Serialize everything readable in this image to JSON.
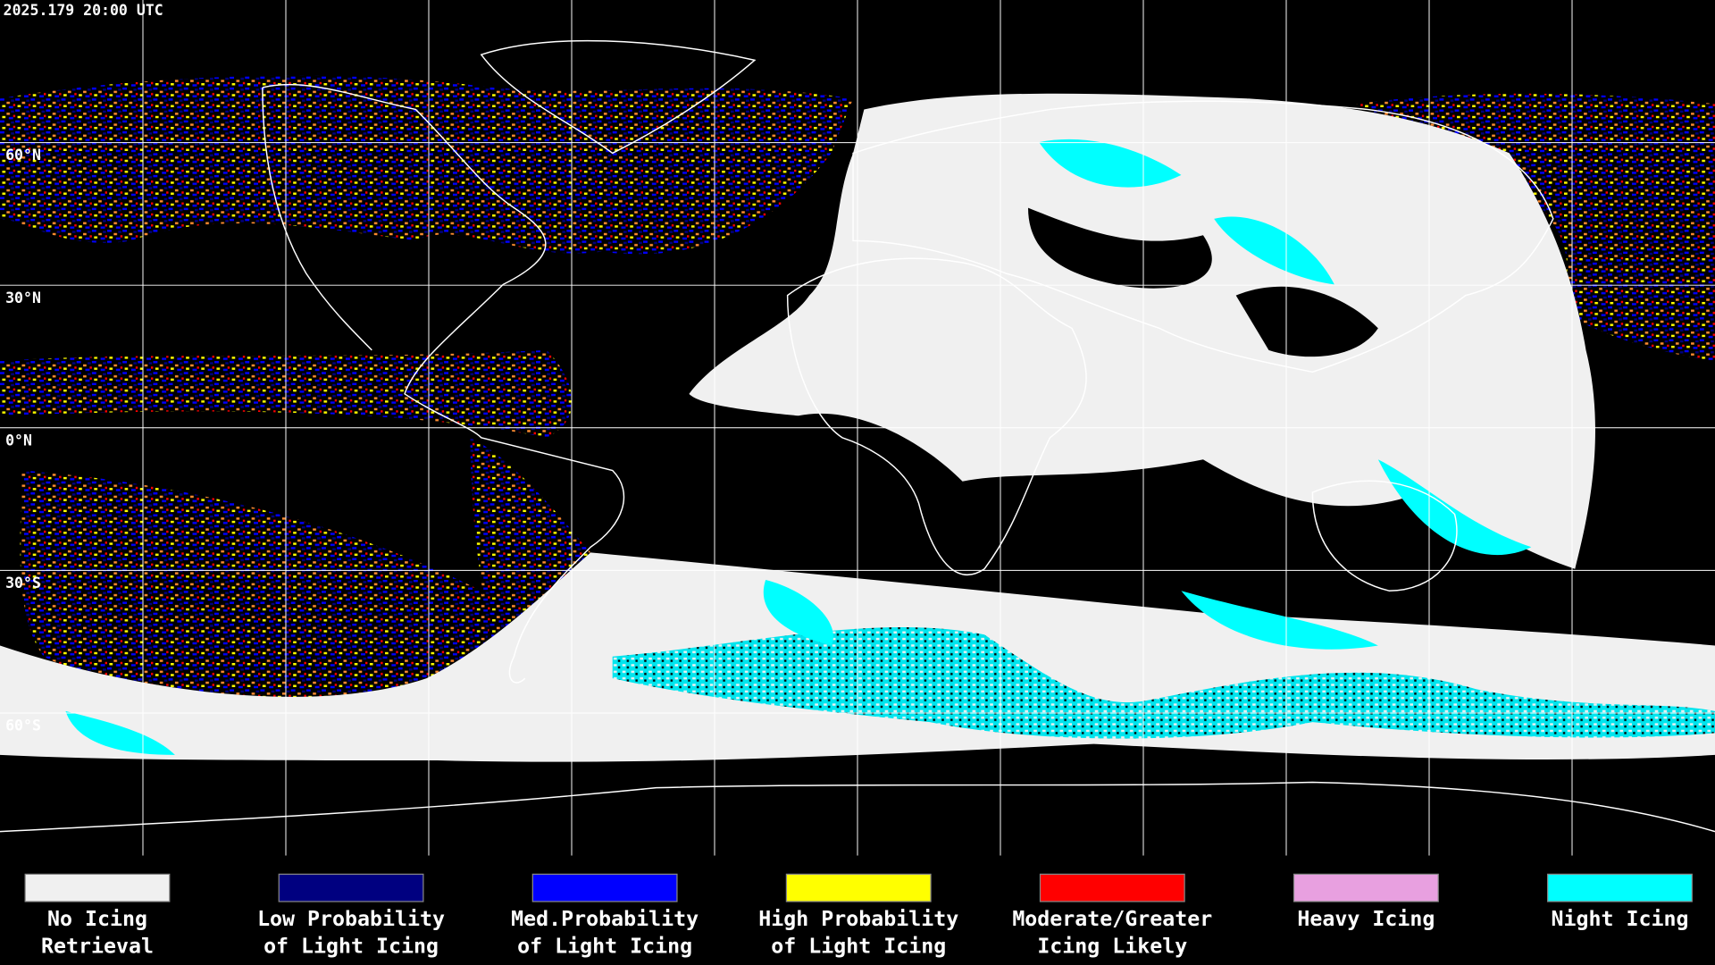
{
  "timestamp": "2025.179 20:00 UTC",
  "latitude_labels": [
    "60°N",
    "30°N",
    "0°N",
    "30°S",
    "60°S"
  ],
  "legend": [
    {
      "color": "#f0f0f0",
      "label": [
        "No Icing",
        "Retrieval"
      ]
    },
    {
      "color": "#000080",
      "label": [
        "Low Probability",
        "of Light Icing"
      ]
    },
    {
      "color": "#0000ff",
      "label": [
        "Med.Probability",
        "of Light Icing"
      ]
    },
    {
      "color": "#ffff00",
      "label": [
        "High Probability",
        "of Light Icing"
      ]
    },
    {
      "color": "#ff0000",
      "label": [
        "Moderate/Greater",
        "Icing Likely"
      ]
    },
    {
      "color": "#e8a0e0",
      "label": [
        "Heavy Icing"
      ]
    },
    {
      "color": "#00ffff",
      "label": [
        "Night Icing"
      ]
    }
  ]
}
